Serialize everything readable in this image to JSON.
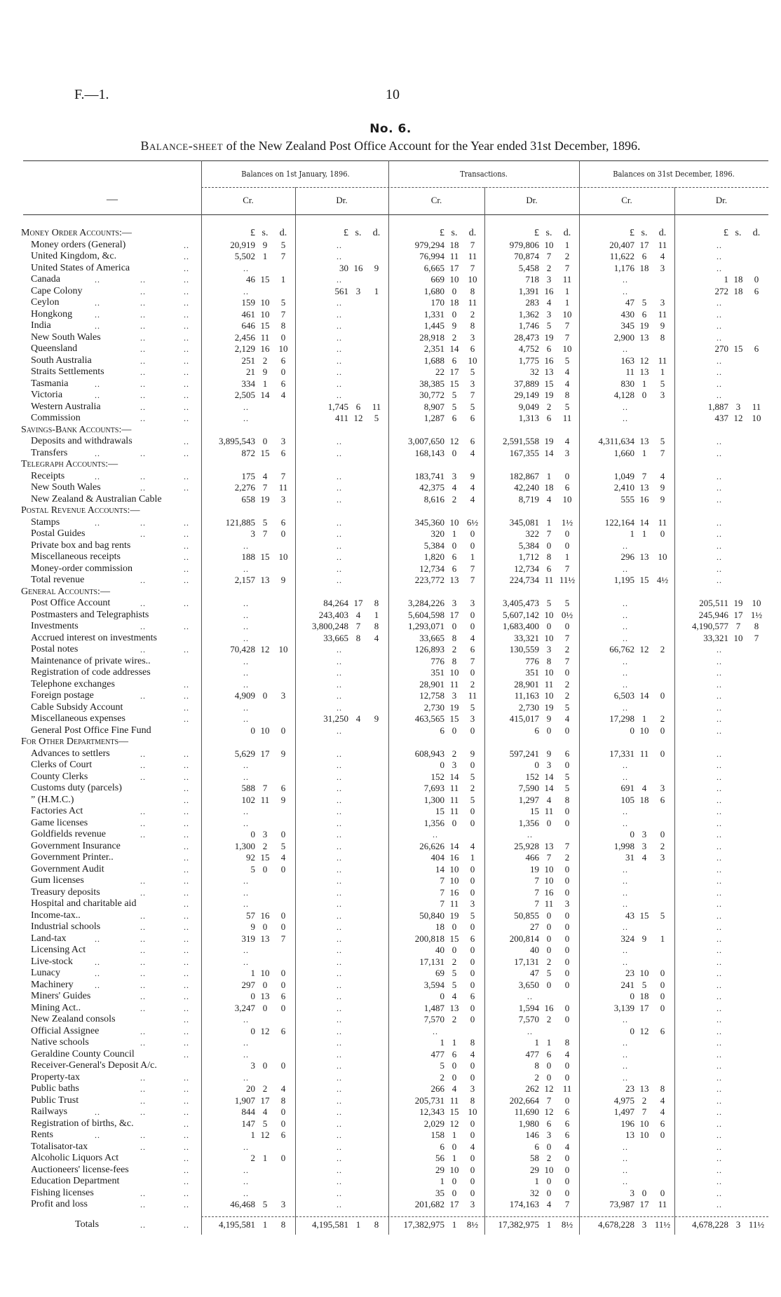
{
  "header": {
    "doc_code": "F.—1.",
    "page_number": "10",
    "table_no": "No. 6.",
    "title_lead": "Balance-sheet",
    "title_rest": " of the New Zealand Post Office Account for the Year ended 31st December, 1896."
  },
  "columns": {
    "stub": "—",
    "groups": [
      "Balances on 1st January, 1896.",
      "Transactions.",
      "Balances on 31st December, 1896."
    ],
    "sub": [
      "Cr.",
      "Dr.",
      "Cr.",
      "Dr.",
      "Cr.",
      "Dr."
    ],
    "units": [
      "£",
      "s.",
      "d."
    ]
  },
  "rows": [
    {
      "type": "section",
      "label": "Money Order Accounts:—",
      "units": true
    },
    {
      "label": "Money orders (General)",
      "leaders": 1,
      "cells": [
        "20,919 9 5",
        "..",
        "979,294 18 7",
        "979,806 10 1",
        "20,407 17 11",
        ".."
      ]
    },
    {
      "label": "United Kingdom, &c.",
      "leaders": 1,
      "cells": [
        "5,502 1 7",
        "..",
        "76,994 11 11",
        "70,874 7 2",
        "11,622 6 4",
        ".."
      ]
    },
    {
      "label": "United States of America",
      "leaders": 1,
      "cells": [
        "..",
        "30 16 9",
        "6,665 17 7",
        "5,458 2 7",
        "1,176 18 3",
        ".."
      ]
    },
    {
      "label": "Canada",
      "leaders": 3,
      "cells": [
        "46 15 1",
        "..",
        "669 10 10",
        "718 3 11",
        "..",
        "1 18 0"
      ]
    },
    {
      "label": "Cape Colony",
      "leaders": 2,
      "cells": [
        "..",
        "561 3 1",
        "1,680 0 8",
        "1,391 16 1",
        "..",
        "272 18 6"
      ]
    },
    {
      "label": "Ceylon",
      "leaders": 3,
      "cells": [
        "159 10 5",
        "..",
        "170 18 11",
        "283 4 1",
        "47 5 3",
        ".."
      ]
    },
    {
      "label": "Hongkong",
      "leaders": 3,
      "cells": [
        "461 10 7",
        "..",
        "1,331 0 2",
        "1,362 3 10",
        "430 6 11",
        ".."
      ]
    },
    {
      "label": "India",
      "leaders": 3,
      "cells": [
        "646 15 8",
        "..",
        "1,445 9 8",
        "1,746 5 7",
        "345 19 9",
        ".."
      ]
    },
    {
      "label": "New South Wales",
      "leaders": 2,
      "cells": [
        "2,456 11 0",
        "..",
        "28,918 2 3",
        "28,473 19 7",
        "2,900 13 8",
        ".."
      ]
    },
    {
      "label": "Queensland",
      "leaders": 2,
      "cells": [
        "2,129 16 10",
        "..",
        "2,351 14 6",
        "4,752 6 10",
        "..",
        "270 15 6"
      ]
    },
    {
      "label": "South Australia",
      "leaders": 2,
      "cells": [
        "251 2 6",
        "..",
        "1,688 6 10",
        "1,775 16 5",
        "163 12 11",
        ".."
      ]
    },
    {
      "label": "Straits Settlements",
      "leaders": 2,
      "cells": [
        "21 9 0",
        "..",
        "22 17 5",
        "32 13 4",
        "11 13 1",
        ".."
      ]
    },
    {
      "label": "Tasmania",
      "leaders": 3,
      "cells": [
        "334 1 6",
        "..",
        "38,385 15 3",
        "37,889 15 4",
        "830 1 5",
        ".."
      ]
    },
    {
      "label": "Victoria",
      "leaders": 3,
      "cells": [
        "2,505 14 4",
        "..",
        "30,772 5 7",
        "29,149 19 8",
        "4,128 0 3",
        ".."
      ]
    },
    {
      "label": "Western Australia",
      "leaders": 2,
      "cells": [
        "..",
        "1,745 6 11",
        "8,907 5 5",
        "9,049 2 5",
        "..",
        "1,887 3 11"
      ]
    },
    {
      "label": "Commission",
      "leaders": 2,
      "cells": [
        "..",
        "411 12 5",
        "1,287 6 6",
        "1,313 6 11",
        "..",
        "437 12 10"
      ]
    },
    {
      "type": "section",
      "label": "Savings-Bank Accounts:—"
    },
    {
      "label": "Deposits and withdrawals",
      "leaders": 1,
      "cells": [
        "3,895,543 0 3",
        "..",
        "3,007,650 12 6",
        "2,591,558 19 4",
        "4,311,634 13 5",
        ".."
      ]
    },
    {
      "label": "Transfers",
      "leaders": 3,
      "cells": [
        "872 15 6",
        "..",
        "168,143 0 4",
        "167,355 14 3",
        "1,660 1 7",
        ".."
      ]
    },
    {
      "type": "section",
      "label": "Telegraph Accounts:—"
    },
    {
      "label": "Receipts",
      "leaders": 3,
      "cells": [
        "175 4 7",
        "..",
        "183,741 3 9",
        "182,867 1 0",
        "1,049 7 4",
        ".."
      ]
    },
    {
      "label": "New South Wales",
      "leaders": 2,
      "cells": [
        "2,276 7 11",
        "..",
        "42,375 4 4",
        "42,240 18 6",
        "2,410 13 9",
        ".."
      ]
    },
    {
      "label": "New Zealand & Australian Cable",
      "leaders": 0,
      "cells": [
        "658 19 3",
        "..",
        "8,616 2 4",
        "8,719 4 10",
        "555 16 9",
        ".."
      ]
    },
    {
      "type": "section",
      "label": "Postal Revenue Accounts:—"
    },
    {
      "label": "Stamps",
      "leaders": 3,
      "cells": [
        "121,885 5 6",
        "..",
        "345,360 10 6½",
        "345,081 1 1½",
        "122,164 14 11",
        ".."
      ]
    },
    {
      "label": "Postal Guides",
      "leaders": 2,
      "cells": [
        "3 7 0",
        "..",
        "320 1 0",
        "322 7 0",
        "1 1 0",
        ".."
      ]
    },
    {
      "label": "Private box and bag rents",
      "leaders": 1,
      "cells": [
        "..",
        "..",
        "5,384 0 0",
        "5,384 0 0",
        "..",
        ".."
      ]
    },
    {
      "label": "Miscellaneous receipts",
      "leaders": 1,
      "cells": [
        "188 15 10",
        "..",
        "1,820 6 1",
        "1,712 8 1",
        "296 13 10",
        ".."
      ]
    },
    {
      "label": "Money-order commission",
      "leaders": 1,
      "cells": [
        "..",
        "..",
        "12,734 6 7",
        "12,734 6 7",
        "..",
        ".."
      ]
    },
    {
      "label": "Total revenue",
      "leaders": 2,
      "cells": [
        "2,157 13 9",
        "..",
        "223,772 13 7",
        "224,734 11 11½",
        "1,195 15 4½",
        ".."
      ]
    },
    {
      "type": "section",
      "label": "General Accounts:—"
    },
    {
      "label": "Post Office Account",
      "leaders": 2,
      "cells": [
        "..",
        "84,264 17 8",
        "3,284,226 3 3",
        "3,405,473 5 5",
        "..",
        "205,511 19 10"
      ]
    },
    {
      "label": "Postmasters and Telegraphists",
      "leaders": 0,
      "cells": [
        "..",
        "243,403 4 1",
        "5,604,598 17 0",
        "5,607,142 10 0½",
        "..",
        "245,946 17 1½"
      ]
    },
    {
      "label": "Investments",
      "leaders": 2,
      "cells": [
        "..",
        "3,800,248 7 8",
        "1,293,071 0 0",
        "1,683,400 0 0",
        "..",
        "4,190,577 7 8"
      ]
    },
    {
      "label": "Accrued interest on investments",
      "leaders": 0,
      "cells": [
        "..",
        "33,665 8 4",
        "33,665 8 4",
        "33,321 10 7",
        "..",
        "33,321 10 7"
      ]
    },
    {
      "label": "Postal notes",
      "leaders": 2,
      "cells": [
        "70,428 12 10",
        "..",
        "126,893 2 6",
        "130,559 3 2",
        "66,762 12 2",
        ".."
      ]
    },
    {
      "label": "Maintenance of private wires..",
      "leaders": 0,
      "cells": [
        "..",
        "..",
        "776 8 7",
        "776 8 7",
        "..",
        ".."
      ]
    },
    {
      "label": "Registration of code addresses",
      "leaders": 0,
      "cells": [
        "..",
        "..",
        "351 10 0",
        "351 10 0",
        "..",
        ".."
      ]
    },
    {
      "label": "Telephone exchanges",
      "leaders": 1,
      "cells": [
        "..",
        "..",
        "28,901 11 2",
        "28,901 11 2",
        "..",
        ".."
      ]
    },
    {
      "label": "Foreign postage",
      "leaders": 2,
      "cells": [
        "4,909 0 3",
        "..",
        "12,758 3 11",
        "11,163 10 2",
        "6,503 14 0",
        ".."
      ]
    },
    {
      "label": "Cable Subsidy Account",
      "leaders": 1,
      "cells": [
        "..",
        "..",
        "2,730 19 5",
        "2,730 19 5",
        "..",
        ".."
      ]
    },
    {
      "label": "Miscellaneous expenses",
      "leaders": 1,
      "cells": [
        "..",
        "31,250 4 9",
        "463,565 15 3",
        "415,017 9 4",
        "17,298 1 2",
        ".."
      ]
    },
    {
      "label": "General Post Office Fine Fund",
      "leaders": 0,
      "cells": [
        "0 10 0",
        "..",
        "6 0 0",
        "6 0 0",
        "0 10 0",
        ".."
      ]
    },
    {
      "type": "section",
      "label": "For Other Departments—"
    },
    {
      "label": "Advances to settlers",
      "leaders": 2,
      "cells": [
        "5,629 17 9",
        "..",
        "608,943 2 9",
        "597,241 9 6",
        "17,331 11 0",
        ".."
      ]
    },
    {
      "label": "Clerks of Court",
      "leaders": 2,
      "cells": [
        "..",
        "..",
        "0 3 0",
        "0 3 0",
        "..",
        ".."
      ]
    },
    {
      "label": "County Clerks",
      "leaders": 2,
      "cells": [
        "..",
        "..",
        "152 14 5",
        "152 14 5",
        "..",
        ".."
      ]
    },
    {
      "label": "Customs duty (parcels)",
      "leaders": 1,
      "cells": [
        "588 7 6",
        "..",
        "7,693 11 2",
        "7,590 14 5",
        "691 4 3",
        ".."
      ]
    },
    {
      "label": "”                  (H.M.C.)",
      "leaders": 1,
      "cells": [
        "102 11 9",
        "..",
        "1,300 11 5",
        "1,297 4 8",
        "105 18 6",
        ".."
      ]
    },
    {
      "label": "Factories Act",
      "leaders": 2,
      "cells": [
        "..",
        "..",
        "15 11 0",
        "15 11 0",
        "..",
        ".."
      ]
    },
    {
      "label": "Game licenses",
      "leaders": 2,
      "cells": [
        "..",
        "..",
        "1,356 0 0",
        "1,356 0 0",
        "..",
        ".."
      ]
    },
    {
      "label": "Goldfields revenue",
      "leaders": 2,
      "cells": [
        "0 3 0",
        "..",
        "..",
        "..",
        "0 3 0",
        ".."
      ]
    },
    {
      "label": "Government Insurance",
      "leaders": 1,
      "cells": [
        "1,300 2 5",
        "..",
        "26,626 14 4",
        "25,928 13 7",
        "1,998 3 2",
        ".."
      ]
    },
    {
      "label": "Government Printer..",
      "leaders": 1,
      "cells": [
        "92 15 4",
        "..",
        "404 16 1",
        "466 7 2",
        "31 4 3",
        ".."
      ]
    },
    {
      "label": "Government Audit",
      "leaders": 1,
      "cells": [
        "5 0 0",
        "..",
        "14 10 0",
        "19 10 0",
        "..",
        ".."
      ]
    },
    {
      "label": "Gum licenses",
      "leaders": 2,
      "cells": [
        "..",
        "..",
        "7 10 0",
        "7 10 0",
        "..",
        ".."
      ]
    },
    {
      "label": "Treasury deposits",
      "leaders": 2,
      "cells": [
        "..",
        "..",
        "7 16 0",
        "7 16 0",
        "..",
        ".."
      ]
    },
    {
      "label": "Hospital and charitable aid",
      "leaders": 1,
      "cells": [
        "..",
        "..",
        "7 11 3",
        "7 11 3",
        "..",
        ".."
      ]
    },
    {
      "label": "Income-tax..",
      "leaders": 2,
      "cells": [
        "57 16 0",
        "..",
        "50,840 19 5",
        "50,855 0 0",
        "43 15 5",
        ".."
      ]
    },
    {
      "label": "Industrial schools",
      "leaders": 2,
      "cells": [
        "9 0 0",
        "..",
        "18 0 0",
        "27 0 0",
        "..",
        ".."
      ]
    },
    {
      "label": "Land-tax",
      "leaders": 3,
      "cells": [
        "319 13 7",
        "..",
        "200,818 15 6",
        "200,814 0 0",
        "324 9 1",
        ".."
      ]
    },
    {
      "label": "Licensing Act",
      "leaders": 2,
      "cells": [
        "..",
        "..",
        "40 0 0",
        "40 0 0",
        "..",
        ".."
      ]
    },
    {
      "label": "Live-stock",
      "leaders": 3,
      "cells": [
        "..",
        "..",
        "17,131 2 0",
        "17,131 2 0",
        "..",
        ".."
      ]
    },
    {
      "label": "Lunacy",
      "leaders": 3,
      "cells": [
        "1 10 0",
        "..",
        "69 5 0",
        "47 5 0",
        "23 10 0",
        ".."
      ]
    },
    {
      "label": "Machinery",
      "leaders": 3,
      "cells": [
        "297 0 0",
        "..",
        "3,594 5 0",
        "3,650 0 0",
        "241 5 0",
        ".."
      ]
    },
    {
      "label": "Miners' Guides",
      "leaders": 2,
      "cells": [
        "0 13 6",
        "..",
        "0 4 6",
        "..",
        "0 18 0",
        ".."
      ]
    },
    {
      "label": "Mining Act..",
      "leaders": 2,
      "cells": [
        "3,247 0 0",
        "..",
        "1,487 13 0",
        "1,594 16 0",
        "3,139 17 0",
        ".."
      ]
    },
    {
      "label": "New Zealand consols",
      "leaders": 1,
      "cells": [
        "..",
        "..",
        "7,570 2 0",
        "7,570 2 0",
        "..",
        ".."
      ]
    },
    {
      "label": "Official Assignee",
      "leaders": 2,
      "cells": [
        "0 12 6",
        "..",
        "..",
        "..",
        "0 12 6",
        ".."
      ]
    },
    {
      "label": "Native schools",
      "leaders": 2,
      "cells": [
        "..",
        "..",
        "1 1 8",
        "1 1 8",
        "..",
        ".."
      ]
    },
    {
      "label": "Geraldine County Council",
      "leaders": 1,
      "cells": [
        "..",
        "..",
        "477 6 4",
        "477 6 4",
        "..",
        ".."
      ]
    },
    {
      "label": "Receiver-General's Deposit A/c.",
      "leaders": 0,
      "cells": [
        "3 0 0",
        "..",
        "5 0 0",
        "8 0 0",
        "..",
        ".."
      ]
    },
    {
      "label": "Property-tax",
      "leaders": 2,
      "cells": [
        "..",
        "..",
        "2 0 0",
        "2 0 0",
        "..",
        ".."
      ]
    },
    {
      "label": "Public baths",
      "leaders": 2,
      "cells": [
        "20 2 4",
        "..",
        "266 4 3",
        "262 12 11",
        "23 13 8",
        ".."
      ]
    },
    {
      "label": "Public Trust",
      "leaders": 2,
      "cells": [
        "1,907 17 8",
        "..",
        "205,731 11 8",
        "202,664 7 0",
        "4,975 2 4",
        ".."
      ]
    },
    {
      "label": "Railways",
      "leaders": 3,
      "cells": [
        "844 4 0",
        "..",
        "12,343 15 10",
        "11,690 12 6",
        "1,497 7 4",
        ".."
      ]
    },
    {
      "label": "Registration of births, &c.",
      "leaders": 1,
      "cells": [
        "147 5 0",
        "..",
        "2,029 12 0",
        "1,980 6 6",
        "196 10 6",
        ".."
      ]
    },
    {
      "label": "Rents",
      "leaders": 3,
      "cells": [
        "1 12 6",
        "..",
        "158 1 0",
        "146 3 6",
        "13 10 0",
        ".."
      ]
    },
    {
      "label": "Totalisator-tax",
      "leaders": 2,
      "cells": [
        "..",
        "..",
        "6 0 4",
        "6 0 4",
        "..",
        ".."
      ]
    },
    {
      "label": "Alcoholic Liquors Act",
      "leaders": 1,
      "cells": [
        "2 1 0",
        "..",
        "56 1 0",
        "58 2 0",
        "..",
        ".."
      ]
    },
    {
      "label": "Auctioneers' license-fees",
      "leaders": 1,
      "cells": [
        "..",
        "..",
        "29 10 0",
        "29 10 0",
        "..",
        ".."
      ]
    },
    {
      "label": "Education Department",
      "leaders": 1,
      "cells": [
        "..",
        "..",
        "1 0 0",
        "1 0 0",
        "..",
        ".."
      ]
    },
    {
      "label": "Fishing licenses",
      "leaders": 2,
      "cells": [
        "..",
        "..",
        "35 0 0",
        "32 0 0",
        "3 0 0",
        ".."
      ]
    },
    {
      "label": "Profit and loss",
      "leaders": 2,
      "cells": [
        "46,468 5 3",
        "..",
        "201,682 17 3",
        "174,163 4 7",
        "73,987 17 11",
        ".."
      ]
    }
  ],
  "totals": {
    "label": "Totals",
    "leaders": 2,
    "cells": [
      "4,195,581 1 8",
      "4,195,581 1 8",
      "17,382,975 1 8½",
      "17,382,975 1 8½",
      "4,678,228 3 11½",
      "4,678,228 3 11½"
    ]
  }
}
